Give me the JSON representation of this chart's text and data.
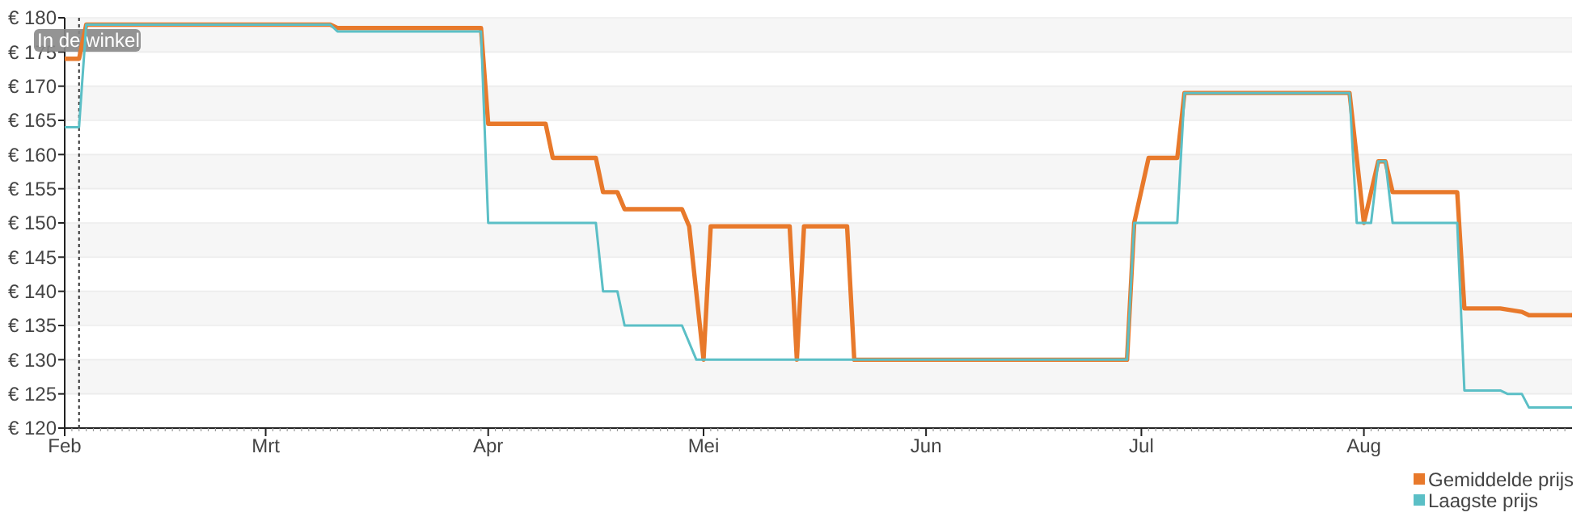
{
  "chart_data": {
    "type": "line",
    "xlim": [
      "--02-01",
      "--08-30"
    ],
    "xticks": [
      {
        "value": "--02-01",
        "label": "Feb"
      },
      {
        "value": "--03-01",
        "label": "Mrt"
      },
      {
        "value": "--04-01",
        "label": "Apr"
      },
      {
        "value": "--05-01",
        "label": "Mei"
      },
      {
        "value": "--06-01",
        "label": "Jun"
      },
      {
        "value": "--07-01",
        "label": "Jul"
      },
      {
        "value": "--08-01",
        "label": "Aug"
      }
    ],
    "ylim": [
      120,
      180
    ],
    "yticks": [
      {
        "value": 120,
        "label": "€ 120"
      },
      {
        "value": 125,
        "label": "€ 125"
      },
      {
        "value": 130,
        "label": "€ 130"
      },
      {
        "value": 135,
        "label": "€ 135"
      },
      {
        "value": 140,
        "label": "€ 140"
      },
      {
        "value": 145,
        "label": "€ 145"
      },
      {
        "value": 150,
        "label": "€ 150"
      },
      {
        "value": 155,
        "label": "€ 155"
      },
      {
        "value": 160,
        "label": "€ 160"
      },
      {
        "value": 165,
        "label": "€ 165"
      },
      {
        "value": 170,
        "label": "€ 170"
      },
      {
        "value": 175,
        "label": "€ 175"
      },
      {
        "value": 180,
        "label": "€ 180"
      }
    ],
    "grid": "y",
    "legend": "bottom right",
    "line_style": "solid",
    "ref_lines": [
      {
        "axis": "x",
        "value": "--02-03",
        "label": "In de winkel",
        "color": "#333333",
        "line_style": "dotted"
      }
    ],
    "series": [
      {
        "name": "Gemiddelde prijs",
        "color": "#e8792b",
        "x": [
          "--02-01",
          "--02-03",
          "--02-04",
          "--03-10",
          "--03-11",
          "--03-31",
          "--04-01",
          "--04-09",
          "--04-10",
          "--04-16",
          "--04-17",
          "--04-19",
          "--04-20",
          "--04-28",
          "--04-29",
          "--05-01",
          "--05-02",
          "--05-13",
          "--05-14",
          "--05-15",
          "--05-21",
          "--05-22",
          "--06-29",
          "--06-30",
          "--07-02",
          "--07-06",
          "--07-07",
          "--07-30",
          "--08-01",
          "--08-03",
          "--08-04",
          "--08-05",
          "--08-14",
          "--08-15",
          "--08-20",
          "--08-23",
          "--08-24",
          "--08-30"
        ],
        "values": [
          174,
          174,
          179,
          179,
          178.5,
          178.5,
          164.5,
          164.5,
          159.5,
          159.5,
          154.5,
          154.5,
          152,
          152,
          149.5,
          130,
          149.5,
          149.5,
          130,
          149.5,
          149.5,
          130,
          130,
          150,
          159.5,
          159.5,
          169,
          169,
          150,
          159,
          159,
          154.5,
          154.5,
          137.5,
          137.5,
          137,
          136.5,
          136.5
        ]
      },
      {
        "name": "Laagste prijs",
        "color": "#5bbfc6",
        "x": [
          "--02-01",
          "--02-03",
          "--02-04",
          "--03-10",
          "--03-11",
          "--03-31",
          "--04-01",
          "--04-16",
          "--04-17",
          "--04-19",
          "--04-20",
          "--04-28",
          "--04-30",
          "--06-29",
          "--06-30",
          "--07-06",
          "--07-07",
          "--07-30",
          "--07-31",
          "--08-02",
          "--08-03",
          "--08-04",
          "--08-05",
          "--08-14",
          "--08-15",
          "--08-20",
          "--08-21",
          "--08-23",
          "--08-24",
          "--08-30"
        ],
        "values": [
          164,
          164,
          179,
          179,
          178,
          178,
          150,
          150,
          140,
          140,
          135,
          135,
          130,
          130,
          150,
          150,
          169,
          169,
          150,
          150,
          159,
          159,
          150,
          150,
          125.5,
          125.5,
          125,
          125,
          123,
          123
        ]
      }
    ]
  }
}
